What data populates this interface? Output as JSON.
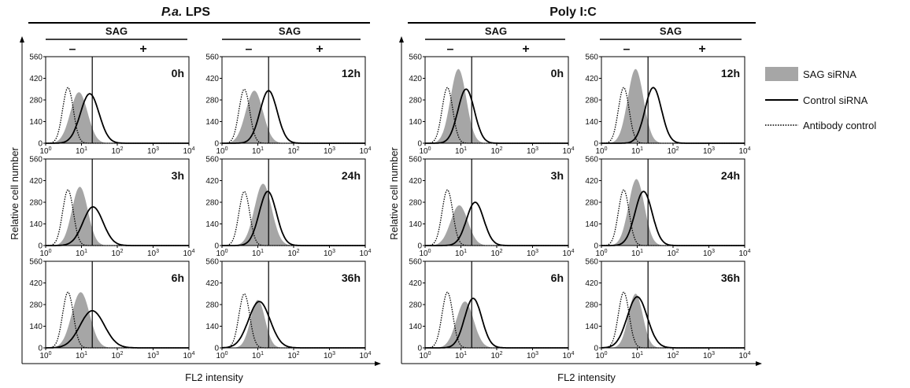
{
  "figure": {
    "ylabel": "Relative cell number",
    "xlabel": "FL2 intensity",
    "sag_label": "SAG",
    "minus": "–",
    "plus": "+"
  },
  "legend": {
    "items": [
      {
        "label": "SAG siRNA",
        "style": "filled",
        "color": "#a6a6a6"
      },
      {
        "label": "Control siRNA",
        "style": "solid",
        "color": "#000000"
      },
      {
        "label": "Antibody control",
        "style": "dotted",
        "color": "#000000"
      }
    ]
  },
  "colors": {
    "sag_fill": "#a6a6a6",
    "control_line": "#000000",
    "antibody_line": "#000000"
  },
  "chart_data": {
    "type": "area",
    "x_scale": "log",
    "xlim": [
      1,
      10000
    ],
    "ylim": [
      0,
      560
    ],
    "x_tick_labels": [
      {
        "base": "10",
        "exp": "0"
      },
      {
        "base": "10",
        "exp": "1"
      },
      {
        "base": "10",
        "exp": "2"
      },
      {
        "base": "10",
        "exp": "3"
      },
      {
        "base": "10",
        "exp": "4"
      }
    ],
    "y_ticks": [
      0,
      140,
      280,
      420,
      560
    ],
    "gate": 20,
    "series_names": [
      "SAG siRNA",
      "Control siRNA",
      "Antibody control"
    ],
    "panels": [
      {
        "group": "P.a. LPS",
        "time": "0h",
        "antibody": {
          "mu": 4.2,
          "sigma": 0.15,
          "peak": 360
        },
        "sag": {
          "mu": 8.5,
          "sigma": 0.24,
          "peak": 330
        },
        "control": {
          "mu": 17,
          "sigma": 0.26,
          "peak": 320
        }
      },
      {
        "group": "P.a. LPS",
        "time": "3h",
        "antibody": {
          "mu": 4.2,
          "sigma": 0.15,
          "peak": 360
        },
        "sag": {
          "mu": 9,
          "sigma": 0.22,
          "peak": 380
        },
        "control": {
          "mu": 21,
          "sigma": 0.28,
          "peak": 250
        }
      },
      {
        "group": "P.a. LPS",
        "time": "6h",
        "antibody": {
          "mu": 4.2,
          "sigma": 0.15,
          "peak": 360
        },
        "sag": {
          "mu": 9.5,
          "sigma": 0.25,
          "peak": 360
        },
        "control": {
          "mu": 20,
          "sigma": 0.34,
          "peak": 240
        }
      },
      {
        "group": "P.a. LPS",
        "time": "12h",
        "antibody": {
          "mu": 4.2,
          "sigma": 0.15,
          "peak": 350
        },
        "sag": {
          "mu": 8,
          "sigma": 0.24,
          "peak": 340
        },
        "control": {
          "mu": 20,
          "sigma": 0.24,
          "peak": 340
        }
      },
      {
        "group": "P.a. LPS",
        "time": "24h",
        "antibody": {
          "mu": 4.2,
          "sigma": 0.15,
          "peak": 350
        },
        "sag": {
          "mu": 14,
          "sigma": 0.24,
          "peak": 400
        },
        "control": {
          "mu": 19,
          "sigma": 0.24,
          "peak": 350
        }
      },
      {
        "group": "P.a. LPS",
        "time": "36h",
        "antibody": {
          "mu": 4.2,
          "sigma": 0.15,
          "peak": 350
        },
        "sag": {
          "mu": 10,
          "sigma": 0.2,
          "peak": 310
        },
        "control": {
          "mu": 11,
          "sigma": 0.3,
          "peak": 300
        }
      },
      {
        "group": "Poly I:C",
        "time": "0h",
        "antibody": {
          "mu": 4.2,
          "sigma": 0.15,
          "peak": 360
        },
        "sag": {
          "mu": 8.5,
          "sigma": 0.22,
          "peak": 480
        },
        "control": {
          "mu": 14,
          "sigma": 0.23,
          "peak": 350
        }
      },
      {
        "group": "Poly I:C",
        "time": "3h",
        "antibody": {
          "mu": 4.2,
          "sigma": 0.15,
          "peak": 360
        },
        "sag": {
          "mu": 9,
          "sigma": 0.24,
          "peak": 260
        },
        "control": {
          "mu": 25,
          "sigma": 0.24,
          "peak": 280
        }
      },
      {
        "group": "Poly I:C",
        "time": "6h",
        "antibody": {
          "mu": 4.2,
          "sigma": 0.15,
          "peak": 360
        },
        "sag": {
          "mu": 13,
          "sigma": 0.24,
          "peak": 300
        },
        "control": {
          "mu": 22,
          "sigma": 0.24,
          "peak": 320
        }
      },
      {
        "group": "Poly I:C",
        "time": "12h",
        "antibody": {
          "mu": 4.2,
          "sigma": 0.15,
          "peak": 360
        },
        "sag": {
          "mu": 9,
          "sigma": 0.22,
          "peak": 480
        },
        "control": {
          "mu": 28,
          "sigma": 0.23,
          "peak": 360
        }
      },
      {
        "group": "Poly I:C",
        "time": "24h",
        "antibody": {
          "mu": 4.2,
          "sigma": 0.15,
          "peak": 360
        },
        "sag": {
          "mu": 9.5,
          "sigma": 0.22,
          "peak": 430
        },
        "control": {
          "mu": 15,
          "sigma": 0.24,
          "peak": 350
        }
      },
      {
        "group": "Poly I:C",
        "time": "36h",
        "antibody": {
          "mu": 4.2,
          "sigma": 0.15,
          "peak": 360
        },
        "sag": {
          "mu": 9,
          "sigma": 0.2,
          "peak": 350
        },
        "control": {
          "mu": 10,
          "sigma": 0.28,
          "peak": 330
        }
      }
    ]
  }
}
